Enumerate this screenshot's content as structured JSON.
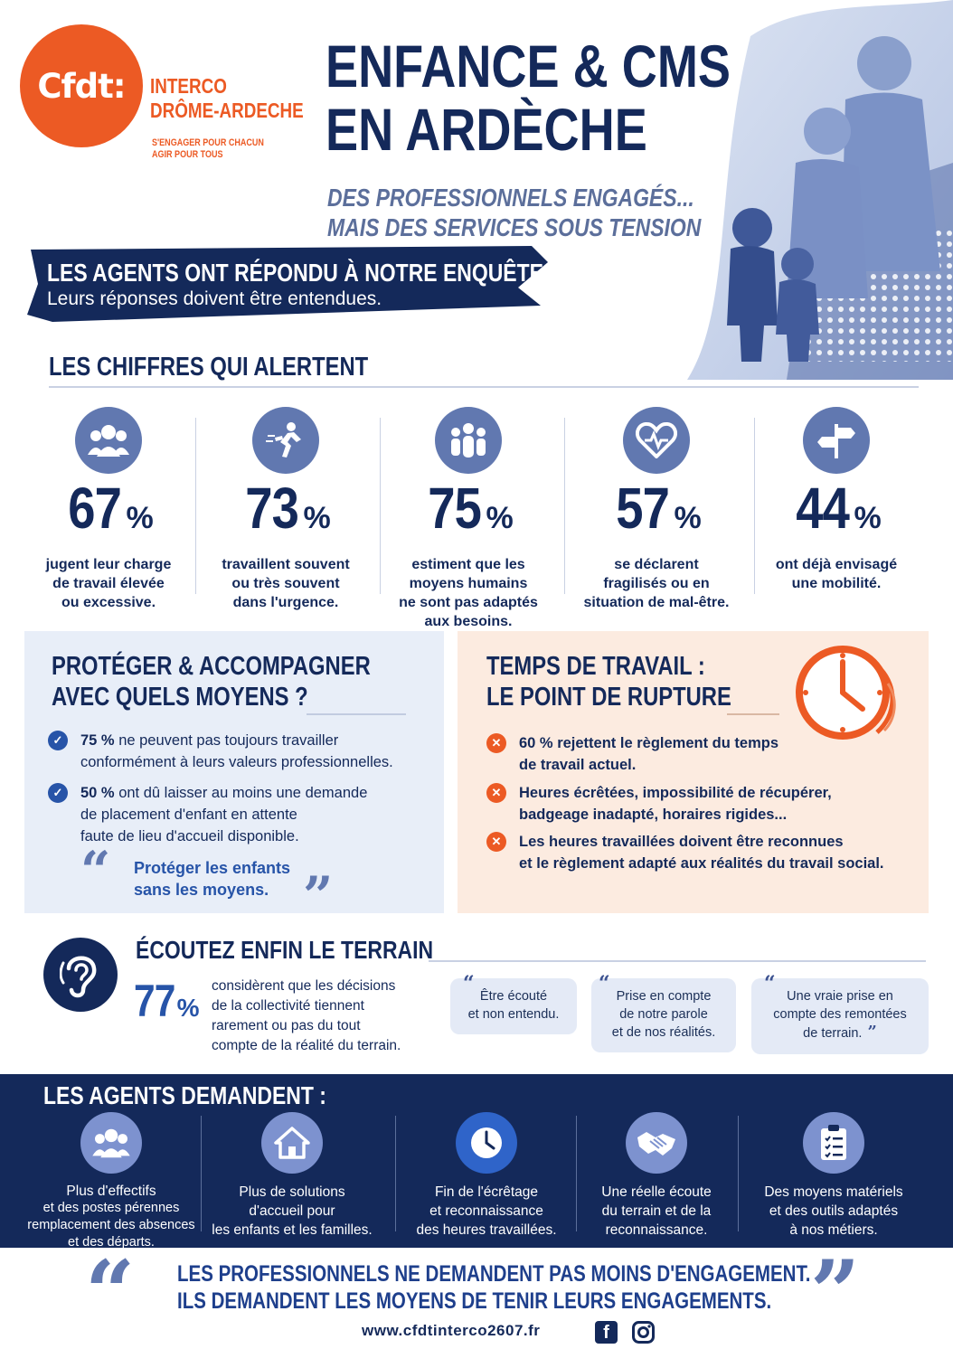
{
  "header": {
    "logo_text": "Cfdt:",
    "org_line1": "INTERCO",
    "org_line2": "DRÔME-ARDECHE",
    "tagline1": "S'ENGAGER POUR CHACUN",
    "tagline2": "AGIR POUR TOUS",
    "title_line1": "ENFANCE & CMS",
    "title_line2": "EN ARDÈCHE",
    "subtitle_line1": "DES PROFESSIONNELS ENGAGÉS...",
    "subtitle_line2": "MAIS DES SERVICES SOUS TENSION"
  },
  "banner": {
    "title": "LES AGENTS ONT RÉPONDU À NOTRE ENQUÊTE",
    "subtitle": "Leurs réponses doivent être entendues."
  },
  "alerts": {
    "title": "LES CHIFFRES QUI ALERTENT",
    "stats": [
      {
        "icon": "group-icon",
        "value": "67",
        "unit": "%",
        "desc": [
          "jugent leur charge",
          "de travail élevée",
          "ou excessive."
        ]
      },
      {
        "icon": "running-person-icon",
        "value": "73",
        "unit": "%",
        "desc": [
          "travaillent souvent",
          "ou très souvent",
          "dans l'urgence."
        ]
      },
      {
        "icon": "team-icon",
        "value": "75",
        "unit": "%",
        "desc": [
          "estiment que les",
          "moyens humains",
          "ne sont pas adaptés",
          "aux besoins."
        ]
      },
      {
        "icon": "heart-pulse-icon",
        "value": "57",
        "unit": "%",
        "desc": [
          "se déclarent",
          "fragilisés ou en",
          "situation de mal-être."
        ]
      },
      {
        "icon": "signpost-icon",
        "value": "44",
        "unit": "%",
        "desc": [
          "ont déjà envisagé",
          "une mobilité."
        ]
      }
    ]
  },
  "protect": {
    "title_line1": "PROTÉGER & ACCOMPAGNER",
    "title_line2": "AVEC QUELS MOYENS ?",
    "bullets": [
      {
        "bold": "75 %",
        "text": " ne peuvent pas toujours travailler",
        "text2": "conformément à leurs valeurs professionnelles."
      },
      {
        "bold": "50 %",
        "text": " ont dû laisser au moins une demande",
        "text2": "de placement d'enfant en attente",
        "text3": "faute de lieu d'accueil disponible."
      }
    ],
    "quote_line1": "Protéger les enfants",
    "quote_line2": "sans les moyens.",
    "quote_open": "“",
    "quote_close": "”"
  },
  "worktime": {
    "title_line1": "TEMPS DE TRAVAIL :",
    "title_line2": "LE POINT DE RUPTURE",
    "bullets": [
      {
        "line1": "60 % rejettent le règlement du temps",
        "line2": "de travail actuel."
      },
      {
        "line1": "Heures écrêtées, impossibilité de récupérer,",
        "line2": "badgeage inadapté, horaires rigides..."
      },
      {
        "line1": "Les heures travaillées doivent être reconnues",
        "line2": "et le règlement adapté aux réalités du travail social."
      }
    ]
  },
  "listen": {
    "title": "ÉCOUTEZ ENFIN LE TERRAIN",
    "value": "77",
    "unit": "%",
    "desc": [
      "considèrent que les décisions",
      "de la collectivité tiennent",
      "rarement ou pas du tout",
      "compte de la réalité du terrain."
    ],
    "quotes": [
      {
        "line1": "Être écouté",
        "line2": "et non entendu."
      },
      {
        "line1": "Prise en compte",
        "line2": "de notre parole",
        "line3": "et de nos réalités."
      },
      {
        "line1": "Une vraie prise en",
        "line2": "compte des remontées",
        "line3": "de terrain."
      }
    ]
  },
  "demands": {
    "title": "LES AGENTS DEMANDENT :",
    "items": [
      {
        "icon": "group-icon",
        "lines": [
          "Plus d'effectifs",
          "et des postes pérennes",
          "remplacement des absences",
          "et des départs."
        ]
      },
      {
        "icon": "house-icon",
        "lines": [
          "Plus de solutions",
          "d'accueil pour",
          "les enfants et les familles."
        ]
      },
      {
        "icon": "clock-icon",
        "lines": [
          "Fin de l'écrêtage",
          "et reconnaissance",
          "des heures travaillées."
        ]
      },
      {
        "icon": "handshake-icon",
        "lines": [
          "Une réelle écoute",
          "du terrain et de la",
          "reconnaissance."
        ]
      },
      {
        "icon": "checklist-icon",
        "lines": [
          "Des moyens matériels",
          "et des outils adaptés",
          "à nos métiers."
        ]
      }
    ]
  },
  "footer": {
    "line1": "LES PROFESSIONNELS NE DEMANDENT PAS MOINS D'ENGAGEMENT.",
    "line2": "ILS DEMANDENT LES MOYENS DE TENIR LEURS ENGAGEMENTS.",
    "url": "www.cfdtinterco2607.fr",
    "quote_open": "“",
    "quote_close": "”",
    "facebook_letter": "f"
  },
  "colors": {
    "navy": "#14295a",
    "orange": "#ec5a24",
    "blue": "#2754a8",
    "icon_blue": "#6178b0",
    "light_blue_bg": "#e8eef8",
    "peach_bg": "#fcebe0"
  }
}
